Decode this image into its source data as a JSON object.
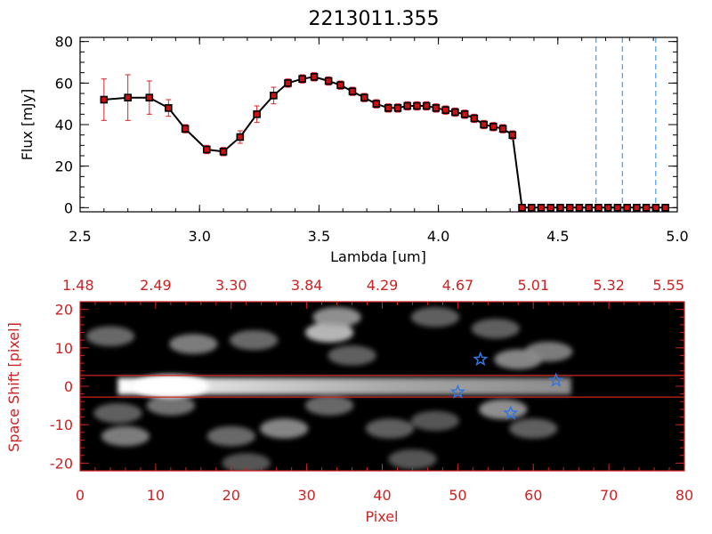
{
  "title": "2213011.355",
  "colors": {
    "axis_red": "#cc2222",
    "marker": "#cc1111",
    "error": "#dd2222",
    "guide": "#2288ee",
    "star": "#3377dd",
    "stripe": "#cc2222"
  },
  "chart_data": [
    {
      "type": "line",
      "title": "2213011.355",
      "xlabel": "Lambda [um]",
      "ylabel": "Flux [mJy]",
      "xlim": [
        2.5,
        5.0
      ],
      "ylim": [
        -2,
        82
      ],
      "x_ticks": [
        2.5,
        3.0,
        3.5,
        4.0,
        4.5,
        5.0
      ],
      "x_tick_labels": [
        "2.5",
        "3.0",
        "3.5",
        "4.0",
        "4.5",
        "5.0"
      ],
      "y_ticks": [
        0,
        20,
        40,
        60,
        80
      ],
      "y_tick_labels": [
        "0",
        "20",
        "40",
        "60",
        "80"
      ],
      "series": [
        {
          "name": "flux",
          "x": [
            2.6,
            2.7,
            2.79,
            2.87,
            2.94,
            3.03,
            3.1,
            3.17,
            3.24,
            3.31,
            3.37,
            3.43,
            3.48,
            3.54,
            3.59,
            3.64,
            3.69,
            3.74,
            3.79,
            3.83,
            3.87,
            3.91,
            3.95,
            3.99,
            4.03,
            4.07,
            4.11,
            4.15,
            4.19,
            4.23,
            4.27,
            4.31,
            4.35,
            4.39,
            4.43,
            4.47,
            4.51,
            4.55,
            4.59,
            4.63,
            4.67,
            4.71,
            4.75,
            4.79,
            4.83,
            4.87,
            4.91,
            4.95
          ],
          "y": [
            52,
            53,
            53,
            48,
            38,
            28,
            27,
            34,
            45,
            54,
            60,
            62,
            63,
            61,
            59,
            56,
            53,
            50,
            48,
            48,
            49,
            49,
            49,
            48,
            47,
            46,
            45,
            43,
            40,
            39,
            38,
            35,
            0,
            0,
            0,
            0,
            0,
            0,
            0,
            0,
            0,
            0,
            0,
            0,
            0,
            0,
            0,
            0
          ],
          "error": [
            10,
            11,
            8,
            4,
            2,
            2,
            2,
            3,
            4,
            4,
            2,
            2,
            2,
            2,
            2,
            2,
            2,
            2,
            2,
            2,
            2,
            2,
            2,
            2,
            2,
            2,
            2,
            2,
            2,
            2,
            2,
            2,
            0,
            0,
            0,
            0,
            0,
            0,
            0,
            0,
            0,
            0,
            0,
            0,
            0,
            0,
            0,
            0
          ]
        }
      ],
      "vertical_guides_x": [
        4.66,
        4.77,
        4.91
      ],
      "zero_line_from_x": 4.47
    },
    {
      "type": "heatmap",
      "xlabel": "Pixel",
      "ylabel": "Space Shift [pixel]",
      "xlim": [
        0,
        80
      ],
      "ylim": [
        -22,
        22
      ],
      "x_ticks": [
        0,
        10,
        20,
        30,
        40,
        50,
        60,
        70,
        80
      ],
      "x_tick_labels": [
        "0",
        "10",
        "20",
        "30",
        "40",
        "50",
        "60",
        "70",
        "80"
      ],
      "y_ticks": [
        -20,
        -10,
        0,
        10,
        20
      ],
      "y_tick_labels": [
        "-20",
        "-10",
        "0",
        "10",
        "20"
      ],
      "top_ticks": [
        0,
        10,
        20,
        30,
        40,
        50,
        60,
        70,
        80
      ],
      "top_tick_labels": [
        "1.48",
        "2.49",
        "3.30",
        "3.84",
        "4.29",
        "4.67",
        "5.01",
        "5.32",
        "5.55"
      ],
      "trace": {
        "x_start": 5,
        "x_end": 65,
        "y": 0,
        "peak_x": 12
      },
      "extraction_window": [
        -2.8,
        2.8
      ],
      "data_extent_x": 65,
      "stars": [
        {
          "x": 50,
          "y": -1.5
        },
        {
          "x": 53,
          "y": 7
        },
        {
          "x": 57,
          "y": -7
        },
        {
          "x": 63,
          "y": 1.5
        }
      ],
      "blobs": [
        {
          "x": 4,
          "y": 13,
          "intensity": 0.35
        },
        {
          "x": 15,
          "y": 11,
          "intensity": 0.45
        },
        {
          "x": 23,
          "y": 12,
          "intensity": 0.35
        },
        {
          "x": 33,
          "y": 14,
          "intensity": 0.75
        },
        {
          "x": 34,
          "y": 18,
          "intensity": 0.55
        },
        {
          "x": 36,
          "y": 8,
          "intensity": 0.3
        },
        {
          "x": 47,
          "y": 18,
          "intensity": 0.3
        },
        {
          "x": 58,
          "y": 7,
          "intensity": 0.5
        },
        {
          "x": 62,
          "y": 9,
          "intensity": 0.45
        },
        {
          "x": 55,
          "y": 15,
          "intensity": 0.3
        },
        {
          "x": 6,
          "y": -13,
          "intensity": 0.45
        },
        {
          "x": 5,
          "y": -7,
          "intensity": 0.3
        },
        {
          "x": 12,
          "y": -5,
          "intensity": 0.4
        },
        {
          "x": 20,
          "y": -13,
          "intensity": 0.35
        },
        {
          "x": 27,
          "y": -11,
          "intensity": 0.5
        },
        {
          "x": 33,
          "y": -5,
          "intensity": 0.35
        },
        {
          "x": 41,
          "y": -11,
          "intensity": 0.3
        },
        {
          "x": 47,
          "y": -9,
          "intensity": 0.25
        },
        {
          "x": 56,
          "y": -6,
          "intensity": 0.55
        },
        {
          "x": 60,
          "y": -11,
          "intensity": 0.3
        },
        {
          "x": 44,
          "y": -19,
          "intensity": 0.25
        },
        {
          "x": 22,
          "y": -20,
          "intensity": 0.25
        }
      ]
    }
  ]
}
